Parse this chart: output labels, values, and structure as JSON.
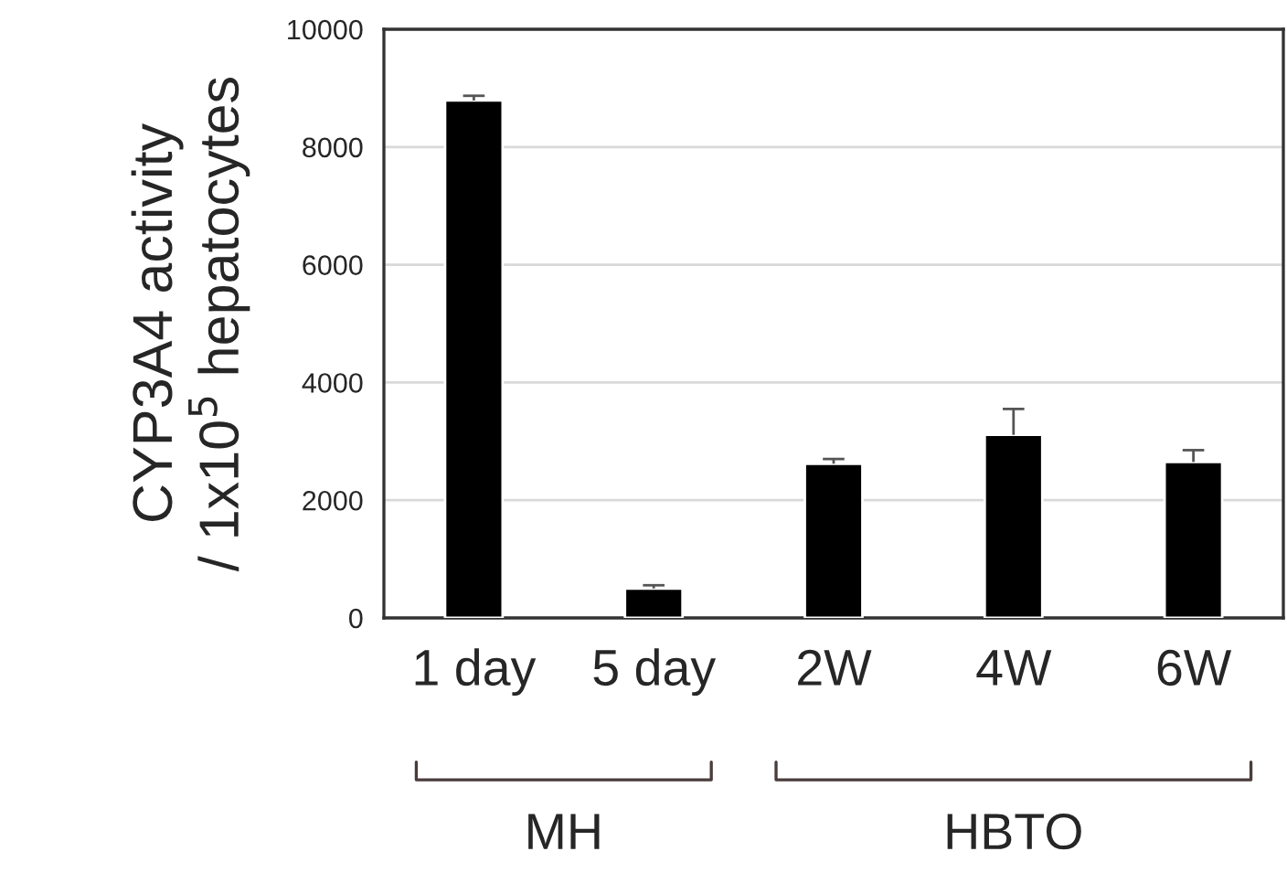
{
  "chart_data": {
    "type": "bar",
    "ylabel": "CYP3A4 activity\n/ 1x10$^{5}$ hepatocytes",
    "categories": [
      "1 day",
      "5 day",
      "2W",
      "4W",
      "6W"
    ],
    "values": [
      8790,
      500,
      2620,
      3110,
      2650
    ],
    "errors": [
      80,
      55,
      80,
      440,
      200
    ],
    "color": "#000000",
    "ylim": [
      0,
      10000
    ],
    "yticks": [
      0,
      2000,
      4000,
      6000,
      8000,
      10000
    ],
    "grid": "y",
    "annotations": [
      "MH",
      "HBTO"
    ]
  }
}
